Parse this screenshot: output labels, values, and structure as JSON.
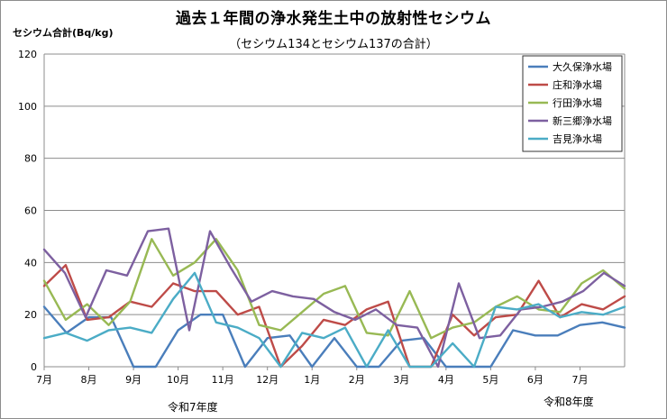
{
  "chart_data": {
    "type": "line",
    "title": "過去１年間の浄水発生土中の放射性セシウム",
    "subtitle": "（セシウム134とセシウム137の合計）",
    "ylabel": "セシウム合計(Bq/kg)",
    "ylim": [
      0,
      120
    ],
    "yticks": [
      0,
      20,
      40,
      60,
      80,
      100,
      120
    ],
    "x_tick_labels": [
      "7月",
      "8月",
      "9月",
      "10月",
      "11月",
      "12月",
      "1月",
      "2月",
      "3月",
      "4月",
      "5月",
      "6月",
      "7月"
    ],
    "x_tick_points": [
      0,
      2,
      4,
      6,
      8,
      10,
      12,
      14,
      16,
      18,
      20,
      22,
      24
    ],
    "era_labels": [
      "令和7年度",
      "令和8年度"
    ],
    "grid": "horizontal",
    "legend_position": "top-right",
    "series": [
      {
        "name": "大久保浄水場",
        "color": "#4a7ebb",
        "values": [
          23,
          13,
          19,
          19,
          0,
          0,
          14,
          20,
          20,
          0,
          11,
          12,
          0,
          11,
          0,
          0,
          10,
          11,
          0,
          0,
          0,
          14,
          12,
          12,
          16,
          17,
          15
        ]
      },
      {
        "name": "庄和浄水場",
        "color": "#be4b48",
        "values": [
          31,
          39,
          18,
          19,
          25,
          23,
          32,
          29,
          29,
          20,
          23,
          0,
          8,
          18,
          16,
          22,
          25,
          0,
          0,
          20,
          12,
          19,
          20,
          33,
          19,
          24,
          22,
          27
        ]
      },
      {
        "name": "行田浄水場",
        "color": "#98b954",
        "values": [
          33,
          18,
          24,
          16,
          25,
          49,
          35,
          40,
          49,
          37,
          16,
          14,
          21,
          28,
          31,
          13,
          12,
          29,
          11,
          15,
          17,
          23,
          27,
          22,
          21,
          32,
          37,
          30
        ]
      },
      {
        "name": "新三郷浄水場",
        "color": "#7d60a0",
        "values": [
          45,
          36,
          19,
          37,
          35,
          52,
          53,
          14,
          52,
          38,
          25,
          29,
          27,
          26,
          21,
          18,
          22,
          16,
          15,
          0,
          32,
          11,
          12,
          22,
          23,
          25,
          29,
          36,
          31
        ]
      },
      {
        "name": "吉見浄水場",
        "color": "#4bacc6",
        "values": [
          11,
          13,
          10,
          14,
          15,
          13,
          26,
          36,
          17,
          15,
          11,
          0,
          13,
          11,
          15,
          0,
          14,
          0,
          0,
          9,
          0,
          23,
          22,
          24,
          19,
          21,
          20,
          23
        ]
      }
    ]
  }
}
